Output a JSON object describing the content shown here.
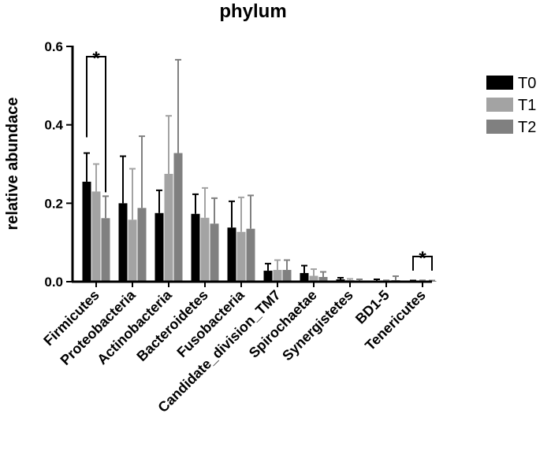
{
  "chart_data": {
    "type": "bar",
    "title": "phylum",
    "ylabel": "relative abundace",
    "xlabel": "",
    "ylim": [
      0,
      0.6
    ],
    "yticks": [
      "0.0",
      "0.2",
      "0.4",
      "0.6"
    ],
    "legend_position": "top-right",
    "categories": [
      "Firmicutes",
      "Proteobacteria",
      "Actinobacteria",
      "Bacteroidetes",
      "Fusobacteria",
      "Candidate_division_TM7",
      "Spirochaetae",
      "Synergistetes",
      "BD1-5",
      "Tenericutes"
    ],
    "series": [
      {
        "name": "T0",
        "color": "#000000",
        "values": [
          0.255,
          0.2,
          0.175,
          0.173,
          0.138,
          0.028,
          0.022,
          0.006,
          0.003,
          0.002
        ],
        "errors": [
          0.073,
          0.12,
          0.058,
          0.05,
          0.067,
          0.018,
          0.019,
          0.004,
          0.003,
          0.001
        ]
      },
      {
        "name": "T1",
        "color": "#a3a3a3",
        "values": [
          0.23,
          0.158,
          0.275,
          0.163,
          0.127,
          0.03,
          0.015,
          0.004,
          0.002,
          0.003
        ],
        "errors": [
          0.07,
          0.13,
          0.148,
          0.076,
          0.088,
          0.025,
          0.017,
          0.003,
          0.002,
          0.001
        ]
      },
      {
        "name": "T2",
        "color": "#808080",
        "values": [
          0.162,
          0.188,
          0.328,
          0.148,
          0.135,
          0.03,
          0.012,
          0.003,
          0.004,
          0.002
        ],
        "errors": [
          0.056,
          0.183,
          0.238,
          0.065,
          0.085,
          0.025,
          0.013,
          0.003,
          0.01,
          0.001
        ]
      }
    ],
    "annotations": [
      {
        "text": "*",
        "category_index": 0,
        "span": [
          "T0",
          "T2"
        ]
      },
      {
        "text": "*",
        "category_index": 9,
        "span": [
          "T0",
          "T2"
        ]
      }
    ]
  }
}
